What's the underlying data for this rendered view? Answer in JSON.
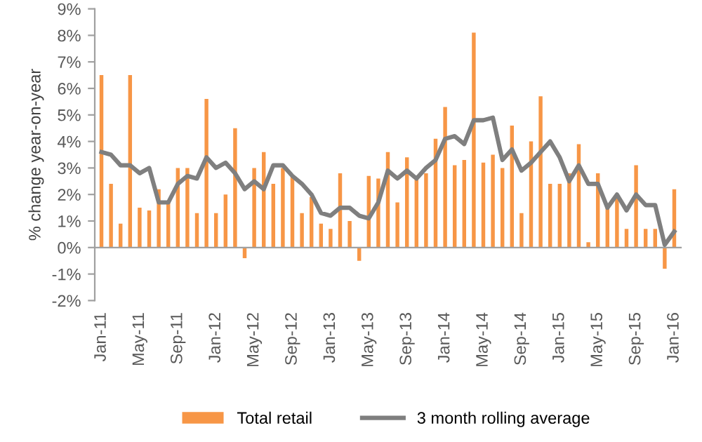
{
  "chart_data": {
    "type": "bar",
    "ylabel": "% change year-on-year",
    "categories": [
      "Jan-11",
      null,
      null,
      null,
      "May-11",
      null,
      null,
      null,
      "Sep-11",
      null,
      null,
      null,
      "Jan-12",
      null,
      null,
      null,
      "May-12",
      null,
      null,
      null,
      "Sep-12",
      null,
      null,
      null,
      "Jan-13",
      null,
      null,
      null,
      "May-13",
      null,
      null,
      null,
      "Sep-13",
      null,
      null,
      null,
      "Jan-14",
      null,
      null,
      null,
      "May-14",
      null,
      null,
      null,
      "Sep-14",
      null,
      null,
      null,
      "Jan-15",
      null,
      null,
      null,
      "May-15",
      null,
      null,
      null,
      "Sep-15",
      null,
      null,
      null,
      "Jan-16"
    ],
    "series": [
      {
        "name": "Total retail",
        "color": "#f79646",
        "values": [
          6.5,
          2.4,
          0.9,
          6.5,
          1.5,
          1.4,
          2.2,
          1.7,
          3.0,
          3.0,
          1.3,
          5.6,
          1.3,
          2.0,
          4.5,
          -0.4,
          3.0,
          3.6,
          2.4,
          3.0,
          2.7,
          1.3,
          1.9,
          0.9,
          0.7,
          2.8,
          1.0,
          -0.5,
          2.7,
          2.6,
          3.6,
          1.7,
          3.4,
          2.7,
          2.8,
          4.1,
          5.3,
          3.1,
          3.3,
          8.1,
          3.2,
          3.5,
          3.0,
          4.6,
          1.3,
          4.0,
          5.7,
          2.4,
          2.4,
          2.8,
          3.9,
          0.2,
          2.8,
          1.5,
          1.9,
          0.7,
          3.1,
          0.7,
          0.7,
          -0.8,
          2.2
        ]
      },
      {
        "name": "3 month rolling average",
        "type": "line",
        "color": "#7f7f7f",
        "values": [
          3.6,
          3.5,
          3.1,
          3.1,
          2.8,
          3.0,
          1.7,
          1.7,
          2.4,
          2.7,
          2.6,
          3.4,
          3.0,
          3.2,
          2.8,
          2.2,
          2.5,
          2.2,
          3.1,
          3.1,
          2.7,
          2.4,
          2.0,
          1.3,
          1.2,
          1.5,
          1.5,
          1.2,
          1.1,
          1.7,
          2.9,
          2.6,
          2.9,
          2.6,
          3.0,
          3.3,
          4.1,
          4.2,
          3.9,
          4.8,
          4.8,
          4.9,
          3.3,
          3.7,
          2.9,
          3.2,
          3.6,
          4.0,
          3.4,
          2.5,
          3.1,
          2.4,
          2.4,
          1.5,
          2.0,
          1.4,
          2.0,
          1.6,
          1.6,
          0.1,
          0.6
        ]
      }
    ],
    "ylim": [
      -2,
      9
    ],
    "yticks": [
      {
        "value": -2,
        "label": "-2%"
      },
      {
        "value": -1,
        "label": "-1%"
      },
      {
        "value": 0,
        "label": "0%"
      },
      {
        "value": 1,
        "label": "1%"
      },
      {
        "value": 2,
        "label": "2%"
      },
      {
        "value": 3,
        "label": "3%"
      },
      {
        "value": 4,
        "label": "4%"
      },
      {
        "value": 5,
        "label": "5%"
      },
      {
        "value": 6,
        "label": "6%"
      },
      {
        "value": 7,
        "label": "7%"
      },
      {
        "value": 8,
        "label": "8%"
      },
      {
        "value": 9,
        "label": "9%"
      }
    ],
    "legend": "bottom"
  }
}
